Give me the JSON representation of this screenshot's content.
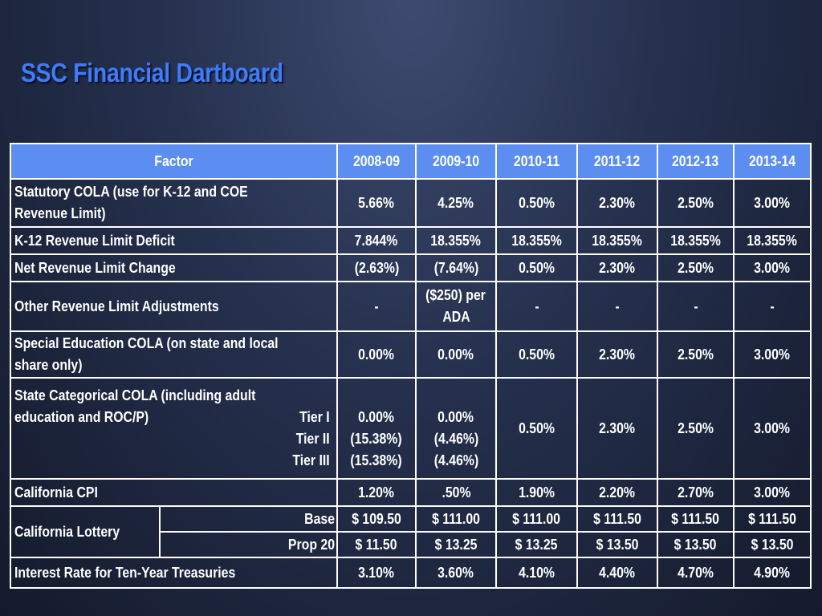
{
  "title": "SSC Financial Dartboard",
  "table": {
    "headers": [
      "Factor",
      "2008-09",
      "2009-10",
      "2010-11",
      "2011-12",
      "2012-13",
      "2013-14"
    ],
    "rows": {
      "cola": {
        "label_line1": "Statutory COLA (use for K-12 and COE",
        "label_line2": "Revenue Limit)",
        "values": [
          "5.66%",
          "4.25%",
          "0.50%",
          "2.30%",
          "2.50%",
          "3.00%"
        ]
      },
      "deficit": {
        "label": "K-12 Revenue Limit Deficit",
        "values": [
          "7.844%",
          "18.355%",
          "18.355%",
          "18.355%",
          "18.355%",
          "18.355%"
        ]
      },
      "net_change": {
        "label": "Net Revenue Limit Change",
        "values": [
          "(2.63%)",
          "(7.64%)",
          "0.50%",
          "2.30%",
          "2.50%",
          "3.00%"
        ]
      },
      "other_adj": {
        "label": "Other Revenue Limit Adjustments",
        "v0": "-",
        "v1_line1": "($250) per",
        "v1_line2": "ADA",
        "v2": "-",
        "v3": "-",
        "v4": "-",
        "v5": "-"
      },
      "sped": {
        "label_line1": "Special Education COLA (on state and local",
        "label_line2": "share only)",
        "values": [
          "0.00%",
          "0.00%",
          "0.50%",
          "2.30%",
          "2.50%",
          "3.00%"
        ]
      },
      "categorical": {
        "label_line1": "State Categorical COLA (including adult",
        "label_line2": "education and ROC/P)",
        "tiers": [
          "Tier I",
          "Tier II",
          "Tier III"
        ],
        "y0809": [
          "0.00%",
          "(15.38%)",
          "(15.38%)"
        ],
        "y0910": [
          "0.00%",
          "(4.46%)",
          "(4.46%)"
        ],
        "values": [
          "0.50%",
          "2.30%",
          "2.50%",
          "3.00%"
        ]
      },
      "cpi": {
        "label": "California CPI",
        "values": [
          "1.20%",
          ".50%",
          "1.90%",
          "2.20%",
          "2.70%",
          "3.00%"
        ]
      },
      "lottery": {
        "label": "California Lottery",
        "base_label": "Base",
        "base_values": [
          "$ 109.50",
          "$ 111.00",
          "$ 111.00",
          "$ 111.50",
          "$ 111.50",
          "$ 111.50"
        ],
        "prop20_label": "Prop 20",
        "prop20_values": [
          "$ 11.50",
          "$ 13.25",
          "$ 13.25",
          "$ 13.50",
          "$ 13.50",
          "$ 13.50"
        ]
      },
      "treasuries": {
        "label": "Interest Rate for Ten-Year Treasuries",
        "values": [
          "3.10%",
          "3.60%",
          "4.10%",
          "4.40%",
          "4.70%",
          "4.90%"
        ]
      }
    }
  }
}
